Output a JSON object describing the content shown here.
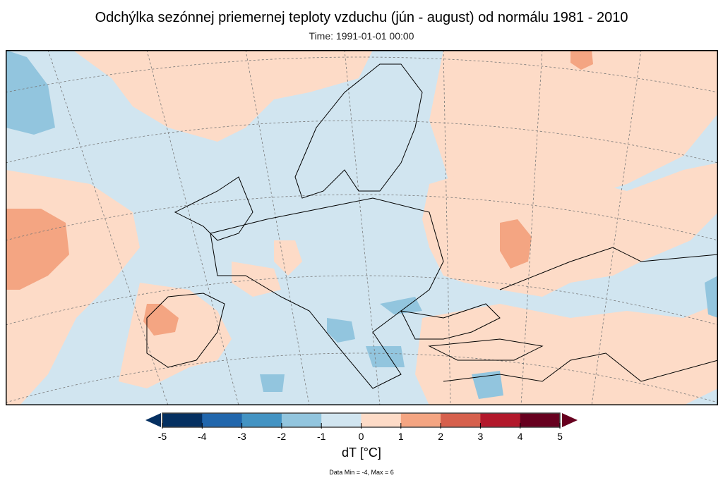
{
  "title": "Odchýlka sezónnej priemernej teploty vzduchu (jún - august) od normálu 1981 - 2010",
  "subtitle": "Time: 1991-01-01 00:00",
  "colorbar": {
    "label": "dT [°C]",
    "ticks": [
      "-5",
      "-4",
      "-3",
      "-2",
      "-1",
      "0",
      "1",
      "2",
      "3",
      "4",
      "5"
    ],
    "colors": [
      "#053061",
      "#2166ac",
      "#4393c3",
      "#92c5de",
      "#d1e5f0",
      "#fddbc7",
      "#f4a582",
      "#d6604d",
      "#b2182b",
      "#67001f"
    ],
    "extend_low_color": "#053061",
    "extend_high_color": "#67001f"
  },
  "stats": "Data Min = -4, Max = 6"
}
